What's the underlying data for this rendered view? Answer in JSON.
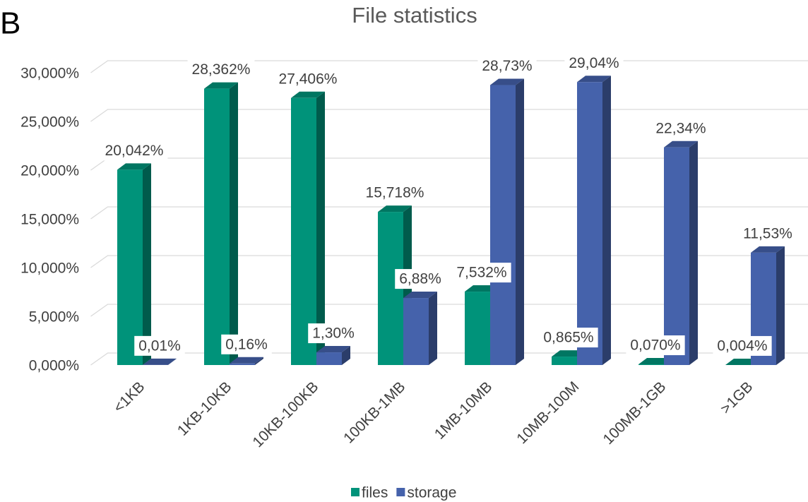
{
  "panel_label": "B",
  "chart_data": {
    "type": "bar3d",
    "title": "File statistics",
    "categories": [
      "<1KB",
      "1KB-10KB",
      "10KB-100KB",
      "100KB-1MB",
      "1MB-10MB",
      "10MB-100M",
      "100MB-1GB",
      ">1GB"
    ],
    "series": [
      {
        "name": "files",
        "color": "#00937a",
        "values": [
          20.042,
          28.362,
          27.406,
          15.718,
          7.532,
          0.865,
          0.07,
          0.004
        ],
        "value_labels": [
          "20,042%",
          "28,362%",
          "27,406%",
          "15,718%",
          "7,532%",
          "0,865%",
          "0,070%",
          "0,004%"
        ]
      },
      {
        "name": "storage",
        "color": "#4562ab",
        "values": [
          0.01,
          0.16,
          1.3,
          6.88,
          28.73,
          29.04,
          22.34,
          11.53
        ],
        "value_labels": [
          "0,01%",
          "0,16%",
          "1,30%",
          "6,88%",
          "28,73%",
          "29,04%",
          "22,34%",
          "11,53%"
        ]
      }
    ],
    "ylim": [
      0,
      30
    ],
    "yticks": [
      {
        "value": 0,
        "label": "0,000%"
      },
      {
        "value": 5,
        "label": "5,000%"
      },
      {
        "value": 10,
        "label": "10,000%"
      },
      {
        "value": 15,
        "label": "15,000%"
      },
      {
        "value": 20,
        "label": "20,000%"
      },
      {
        "value": 25,
        "label": "25,000%"
      },
      {
        "value": 30,
        "label": "30,000%"
      }
    ],
    "grid": true,
    "legend": "bottom"
  }
}
